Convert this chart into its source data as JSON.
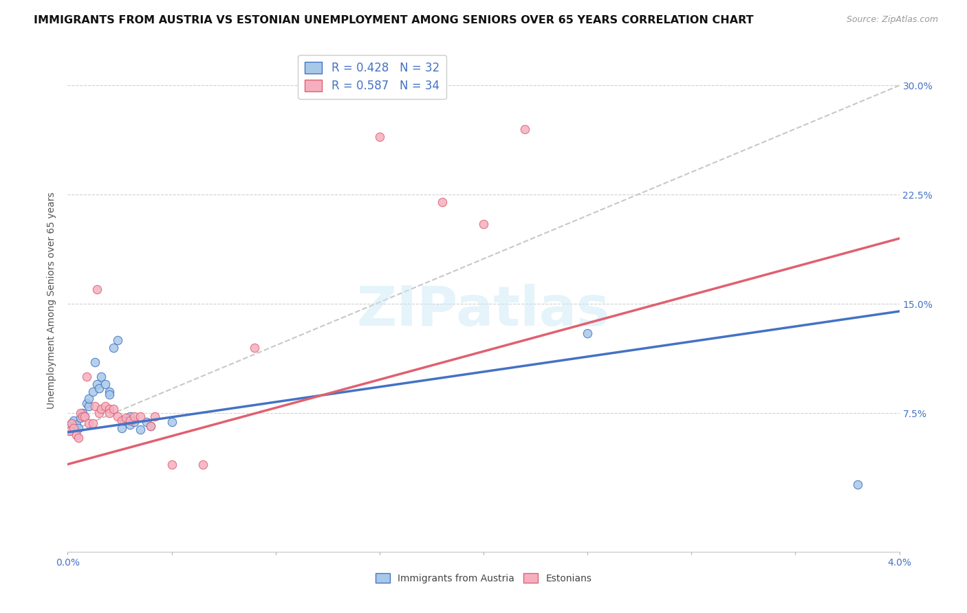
{
  "title": "IMMIGRANTS FROM AUSTRIA VS ESTONIAN UNEMPLOYMENT AMONG SENIORS OVER 65 YEARS CORRELATION CHART",
  "source": "Source: ZipAtlas.com",
  "ylabel": "Unemployment Among Seniors over 65 years",
  "xlim": [
    0.0,
    0.04
  ],
  "ylim": [
    -0.02,
    0.325
  ],
  "yticks": [
    0.075,
    0.15,
    0.225,
    0.3
  ],
  "ytick_labels": [
    "7.5%",
    "15.0%",
    "22.5%",
    "30.0%"
  ],
  "xticks": [
    0.0,
    0.005,
    0.01,
    0.015,
    0.02,
    0.025,
    0.03,
    0.035,
    0.04
  ],
  "xtick_labels": [
    "0.0%",
    "",
    "",
    "",
    "",
    "",
    "",
    "",
    "4.0%"
  ],
  "austria_scatter": [
    [
      0.0001,
      0.063
    ],
    [
      0.0002,
      0.068
    ],
    [
      0.0003,
      0.07
    ],
    [
      0.0004,
      0.067
    ],
    [
      0.0005,
      0.065
    ],
    [
      0.0006,
      0.072
    ],
    [
      0.0007,
      0.075
    ],
    [
      0.0008,
      0.073
    ],
    [
      0.0009,
      0.082
    ],
    [
      0.001,
      0.08
    ],
    [
      0.001,
      0.085
    ],
    [
      0.0012,
      0.09
    ],
    [
      0.0013,
      0.11
    ],
    [
      0.0014,
      0.095
    ],
    [
      0.0015,
      0.092
    ],
    [
      0.0016,
      0.1
    ],
    [
      0.0018,
      0.095
    ],
    [
      0.002,
      0.09
    ],
    [
      0.002,
      0.088
    ],
    [
      0.0022,
      0.12
    ],
    [
      0.0024,
      0.125
    ],
    [
      0.0026,
      0.065
    ],
    [
      0.0027,
      0.07
    ],
    [
      0.003,
      0.067
    ],
    [
      0.003,
      0.073
    ],
    [
      0.0032,
      0.069
    ],
    [
      0.0035,
      0.064
    ],
    [
      0.0038,
      0.069
    ],
    [
      0.004,
      0.066
    ],
    [
      0.005,
      0.069
    ],
    [
      0.025,
      0.13
    ],
    [
      0.038,
      0.026
    ]
  ],
  "estonian_scatter": [
    [
      0.0001,
      0.063
    ],
    [
      0.0002,
      0.068
    ],
    [
      0.0003,
      0.065
    ],
    [
      0.0004,
      0.06
    ],
    [
      0.0005,
      0.058
    ],
    [
      0.0006,
      0.075
    ],
    [
      0.0007,
      0.073
    ],
    [
      0.0008,
      0.073
    ],
    [
      0.0009,
      0.1
    ],
    [
      0.001,
      0.068
    ],
    [
      0.0012,
      0.068
    ],
    [
      0.0013,
      0.08
    ],
    [
      0.0014,
      0.16
    ],
    [
      0.0015,
      0.075
    ],
    [
      0.0016,
      0.078
    ],
    [
      0.0018,
      0.08
    ],
    [
      0.002,
      0.078
    ],
    [
      0.002,
      0.075
    ],
    [
      0.0022,
      0.078
    ],
    [
      0.0024,
      0.073
    ],
    [
      0.0026,
      0.07
    ],
    [
      0.0028,
      0.072
    ],
    [
      0.003,
      0.07
    ],
    [
      0.0032,
      0.073
    ],
    [
      0.0035,
      0.073
    ],
    [
      0.004,
      0.066
    ],
    [
      0.0042,
      0.073
    ],
    [
      0.005,
      0.04
    ],
    [
      0.0065,
      0.04
    ],
    [
      0.009,
      0.12
    ],
    [
      0.015,
      0.265
    ],
    [
      0.018,
      0.22
    ],
    [
      0.02,
      0.205
    ],
    [
      0.022,
      0.27
    ]
  ],
  "austria_line": [
    [
      0.0,
      0.062
    ],
    [
      0.04,
      0.145
    ]
  ],
  "estonian_line": [
    [
      0.0,
      0.04
    ],
    [
      0.04,
      0.195
    ]
  ],
  "diagonal_line": [
    [
      0.0,
      0.062
    ],
    [
      0.04,
      0.3
    ]
  ],
  "bg_color": "#ffffff",
  "grid_color": "#d0d0d0",
  "austria_color": "#a8c8e8",
  "estonian_color": "#f4b0c0",
  "austria_line_color": "#4472c4",
  "estonian_line_color": "#e06070",
  "diagonal_color": "#c8c8c8",
  "watermark_text": "ZIPatlas",
  "scatter_size": 80,
  "title_fontsize": 11.5,
  "label_fontsize": 10,
  "tick_fontsize": 10,
  "legend_fontsize": 12,
  "legend_r1": "R = 0.428",
  "legend_n1": "N = 32",
  "legend_r2": "R = 0.587",
  "legend_n2": "N = 34"
}
